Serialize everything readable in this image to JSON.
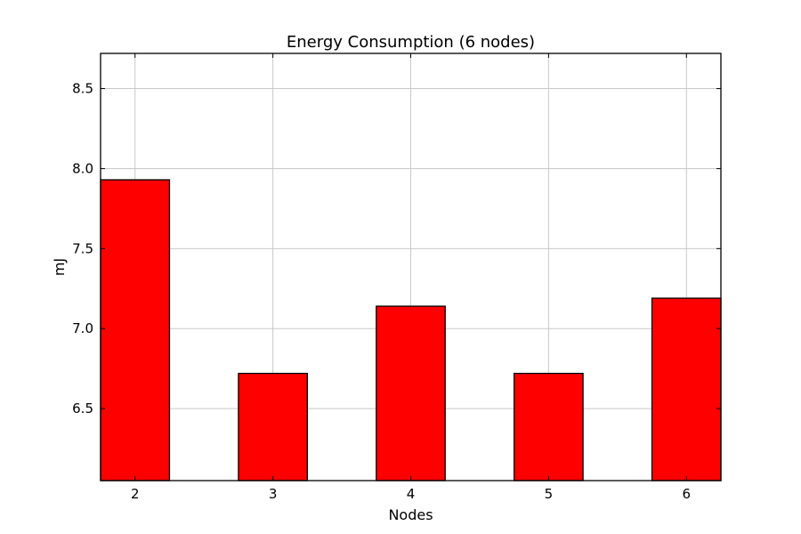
{
  "chart_data": {
    "type": "bar",
    "title": "Energy Consumption (6 nodes)",
    "xlabel": "Nodes",
    "ylabel": "mJ",
    "categories": [
      "2",
      "3",
      "4",
      "5",
      "6"
    ],
    "values": [
      7.93,
      6.72,
      7.14,
      6.72,
      7.19
    ],
    "ylim": [
      6.05,
      8.72
    ],
    "yticks": [
      6.5,
      7.0,
      7.5,
      8.0,
      8.5
    ],
    "ytick_labels": [
      "6.5",
      "7.0",
      "7.5",
      "8.0",
      "8.5"
    ],
    "grid": true,
    "bar_color": "#ff0000",
    "edge_color": "#000000"
  }
}
